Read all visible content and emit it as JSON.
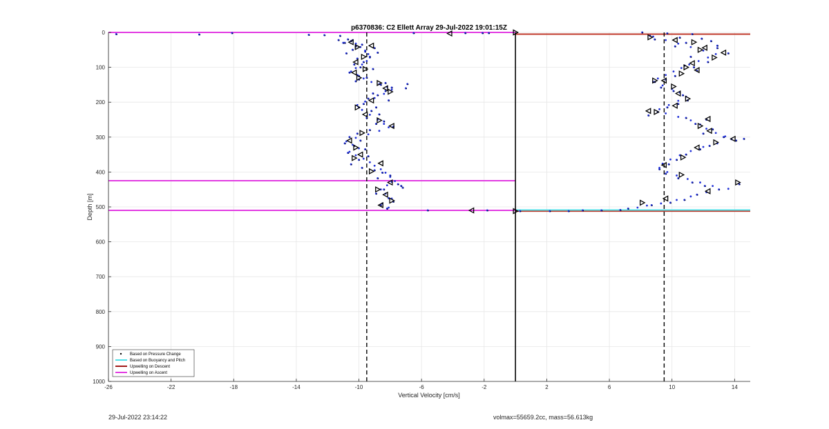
{
  "chart_data": {
    "type": "scatter",
    "title": "p6370836: C2 Ellett Array 29-Jul-2022 19:01:15Z",
    "xlabel": "Vertical Velocity [cm/s]",
    "ylabel": "Depth [m]",
    "xlim": [
      -26,
      15
    ],
    "ylim": [
      0,
      1000
    ],
    "y_reversed": true,
    "grid": true,
    "x_ticks": [
      -26,
      -22,
      -18,
      -14,
      -10,
      -6,
      -2,
      2,
      6,
      10,
      14
    ],
    "x_tick_labels": [
      "-26",
      "-22",
      "-18",
      "-14",
      "-10",
      "-6",
      "-2",
      "2",
      "6",
      "10",
      "14"
    ],
    "y_ticks": [
      0,
      100,
      200,
      300,
      400,
      500,
      600,
      700,
      800,
      900,
      1000
    ],
    "y_tick_labels": [
      "0",
      "100",
      "200",
      "300",
      "400",
      "500",
      "600",
      "700",
      "800",
      "900",
      "1000"
    ],
    "legend": {
      "position": "bottom-left",
      "entries": [
        {
          "label": "Based on Pressure Change",
          "style": "dot",
          "color": "#000000"
        },
        {
          "label": "Based on Buoyancy and Pitch",
          "style": "line",
          "color": "#4ee0e8"
        },
        {
          "label": "Upwelling on Descent",
          "style": "line",
          "color": "#a01818"
        },
        {
          "label": "Upwelling on Ascent",
          "style": "line",
          "color": "#e23ae2"
        }
      ]
    },
    "colors": {
      "dots": "#1f2fd6",
      "dots_black": "#000000",
      "markers": "#000000",
      "descent": "#c0392b",
      "ascent": "#e23ae2",
      "buoyancy": "#4ee0e8"
    },
    "reference_lines": [
      {
        "kind": "vertical",
        "x": -9.5,
        "style": "dashed"
      },
      {
        "kind": "vertical",
        "x": 9.5,
        "style": "dashed"
      },
      {
        "kind": "vertical",
        "x": 0,
        "style": "solid"
      }
    ],
    "upwelling_lines": [
      {
        "series": "Upwelling on Ascent",
        "x": [
          -26,
          0
        ],
        "y": 0
      },
      {
        "series": "Upwelling on Ascent",
        "x": [
          -26,
          0
        ],
        "y": 425
      },
      {
        "series": "Upwelling on Ascent",
        "x": [
          -26,
          0
        ],
        "y": 510
      },
      {
        "series": "Upwelling on Descent",
        "x": [
          0,
          15
        ],
        "y": 5
      },
      {
        "series": "Upwelling on Descent",
        "x": [
          0,
          15
        ],
        "y": 512
      },
      {
        "series": "Based on Buoyancy and Pitch",
        "x": [
          0,
          15
        ],
        "y": 509
      }
    ],
    "pressure_points": [
      [
        -25.5,
        5
      ],
      [
        -20.2,
        6
      ],
      [
        -18.1,
        2
      ],
      [
        -13.2,
        7
      ],
      [
        -12.2,
        8
      ],
      [
        -11.2,
        10
      ],
      [
        -6.5,
        2
      ],
      [
        -3.2,
        2
      ],
      [
        -2.1,
        2
      ],
      [
        -1.7,
        2
      ],
      [
        -10.7,
        20
      ],
      [
        -10.9,
        30
      ],
      [
        -10.5,
        25
      ],
      [
        -10.2,
        40
      ],
      [
        -9.8,
        35
      ],
      [
        -10.4,
        50
      ],
      [
        -9.6,
        55
      ],
      [
        -10.8,
        60
      ],
      [
        -9.3,
        70
      ],
      [
        -10.1,
        75
      ],
      [
        -9.7,
        85
      ],
      [
        -10.3,
        92
      ],
      [
        -9.9,
        100
      ],
      [
        -9.1,
        105
      ],
      [
        -10.6,
        115
      ],
      [
        -10.0,
        125
      ],
      [
        -9.5,
        130
      ],
      [
        -10.2,
        140
      ],
      [
        -8.6,
        150
      ],
      [
        -7.9,
        158
      ],
      [
        -8.3,
        168
      ],
      [
        -8.8,
        180
      ],
      [
        -9.4,
        190
      ],
      [
        -8.1,
        195
      ],
      [
        -9.7,
        205
      ],
      [
        -10.0,
        215
      ],
      [
        -9.2,
        225
      ],
      [
        -8.7,
        235
      ],
      [
        -9.5,
        245
      ],
      [
        -8.4,
        255
      ],
      [
        -8.9,
        262
      ],
      [
        -7.8,
        270
      ],
      [
        -9.3,
        280
      ],
      [
        -10.1,
        290
      ],
      [
        -10.6,
        300
      ],
      [
        -9.9,
        310
      ],
      [
        -10.9,
        318
      ],
      [
        -10.3,
        325
      ],
      [
        -9.6,
        335
      ],
      [
        -10.7,
        345
      ],
      [
        -9.4,
        355
      ],
      [
        -10.0,
        365
      ],
      [
        -10.5,
        378
      ],
      [
        -9.8,
        388
      ],
      [
        -9.0,
        395
      ],
      [
        -8.5,
        402
      ],
      [
        -8.0,
        410
      ],
      [
        -8.8,
        418
      ],
      [
        -7.9,
        428
      ],
      [
        -7.3,
        440
      ],
      [
        -8.4,
        450
      ],
      [
        -8.9,
        462
      ],
      [
        -8.1,
        475
      ],
      [
        -7.8,
        485
      ],
      [
        -8.6,
        495
      ],
      [
        -8.2,
        505
      ],
      [
        -5.6,
        510
      ],
      [
        -1.8,
        510
      ],
      [
        -7.2,
        445
      ],
      [
        -7.5,
        435
      ],
      [
        -6.9,
        148
      ],
      [
        -7.0,
        160
      ],
      [
        -11.0,
        30
      ],
      [
        -11.3,
        22
      ],
      [
        -9.0,
        45
      ],
      [
        -8.8,
        58
      ],
      [
        -10.0,
        135
      ],
      [
        -8.3,
        145
      ],
      [
        -9.1,
        175
      ],
      [
        -8.9,
        215
      ],
      [
        8.1,
        0
      ],
      [
        8.6,
        10
      ],
      [
        9.7,
        3
      ],
      [
        10.5,
        15
      ],
      [
        11.3,
        5
      ],
      [
        11.9,
        18
      ],
      [
        12.5,
        25
      ],
      [
        10.9,
        30
      ],
      [
        12.9,
        45
      ],
      [
        13.6,
        60
      ],
      [
        11.2,
        70
      ],
      [
        12.3,
        85
      ],
      [
        10.8,
        95
      ],
      [
        11.6,
        110
      ],
      [
        10.2,
        125
      ],
      [
        9.6,
        135
      ],
      [
        8.9,
        142
      ],
      [
        9.3,
        158
      ],
      [
        10.1,
        168
      ],
      [
        10.7,
        180
      ],
      [
        11.0,
        195
      ],
      [
        10.4,
        205
      ],
      [
        9.7,
        215
      ],
      [
        9.1,
        228
      ],
      [
        8.5,
        238
      ],
      [
        10.9,
        245
      ],
      [
        12.2,
        250
      ],
      [
        11.5,
        262
      ],
      [
        12.6,
        278
      ],
      [
        12.0,
        290
      ],
      [
        13.3,
        300
      ],
      [
        14.1,
        310
      ],
      [
        14.6,
        305
      ],
      [
        12.4,
        325
      ],
      [
        11.8,
        335
      ],
      [
        10.9,
        350
      ],
      [
        10.3,
        365
      ],
      [
        9.8,
        378
      ],
      [
        9.2,
        392
      ],
      [
        9.6,
        405
      ],
      [
        10.4,
        418
      ],
      [
        11.3,
        430
      ],
      [
        12.1,
        440
      ],
      [
        13.0,
        450
      ],
      [
        14.3,
        435
      ],
      [
        11.6,
        465
      ],
      [
        10.8,
        480
      ],
      [
        9.9,
        488
      ],
      [
        8.7,
        495
      ],
      [
        7.2,
        505
      ],
      [
        5.5,
        510
      ],
      [
        3.4,
        512
      ],
      [
        2.2,
        512
      ],
      [
        0.3,
        512
      ],
      [
        4.3,
        510
      ],
      [
        6.7,
        509
      ],
      [
        8.9,
        20
      ],
      [
        10.2,
        40
      ],
      [
        12.9,
        38
      ],
      [
        11.4,
        100
      ]
    ],
    "buoyancy_points": [
      [
        -10.4,
        22
      ],
      [
        -10.2,
        32
      ],
      [
        -9.9,
        42
      ],
      [
        -9.6,
        52
      ],
      [
        -9.4,
        62
      ],
      [
        -9.3,
        72
      ],
      [
        -9.5,
        82
      ],
      [
        -9.8,
        92
      ],
      [
        -10.2,
        102
      ],
      [
        -10.5,
        112
      ],
      [
        -10.1,
        122
      ],
      [
        -9.7,
        132
      ],
      [
        -9.2,
        142
      ],
      [
        -8.7,
        148
      ],
      [
        -8.2,
        156
      ],
      [
        -7.9,
        164
      ],
      [
        -8.4,
        176
      ],
      [
        -9.0,
        188
      ],
      [
        -9.6,
        198
      ],
      [
        -10.1,
        208
      ],
      [
        -9.8,
        222
      ],
      [
        -9.3,
        236
      ],
      [
        -8.8,
        250
      ],
      [
        -8.4,
        262
      ],
      [
        -8.1,
        272
      ],
      [
        -8.7,
        282
      ],
      [
        -9.4,
        292
      ],
      [
        -10.2,
        302
      ],
      [
        -10.8,
        312
      ],
      [
        -10.4,
        322
      ],
      [
        -10.0,
        332
      ],
      [
        -10.6,
        342
      ],
      [
        -10.2,
        352
      ],
      [
        -9.7,
        362
      ],
      [
        -9.3,
        372
      ],
      [
        -9.0,
        382
      ],
      [
        -8.6,
        392
      ],
      [
        -8.3,
        402
      ],
      [
        -8.0,
        414
      ],
      [
        -7.7,
        426
      ],
      [
        -8.2,
        438
      ],
      [
        -8.6,
        450
      ],
      [
        -8.3,
        462
      ],
      [
        -7.9,
        476
      ],
      [
        -8.5,
        490
      ],
      [
        -8.1,
        502
      ],
      [
        8.8,
        12
      ],
      [
        9.6,
        22
      ],
      [
        10.4,
        32
      ],
      [
        11.2,
        42
      ],
      [
        12.0,
        52
      ],
      [
        12.8,
        62
      ],
      [
        12.3,
        72
      ],
      [
        11.7,
        82
      ],
      [
        11.1,
        92
      ],
      [
        10.6,
        102
      ],
      [
        10.1,
        112
      ],
      [
        9.6,
        122
      ],
      [
        9.1,
        132
      ],
      [
        8.8,
        142
      ],
      [
        9.4,
        152
      ],
      [
        10.0,
        162
      ],
      [
        10.5,
        172
      ],
      [
        10.9,
        184
      ],
      [
        10.4,
        196
      ],
      [
        9.8,
        208
      ],
      [
        9.2,
        220
      ],
      [
        9.6,
        232
      ],
      [
        10.4,
        242
      ],
      [
        11.2,
        252
      ],
      [
        11.8,
        264
      ],
      [
        12.2,
        276
      ],
      [
        12.8,
        288
      ],
      [
        13.4,
        298
      ],
      [
        13.8,
        306
      ],
      [
        12.9,
        318
      ],
      [
        12.0,
        328
      ],
      [
        11.2,
        340
      ],
      [
        10.5,
        352
      ],
      [
        9.9,
        364
      ],
      [
        9.4,
        376
      ],
      [
        9.2,
        388
      ],
      [
        9.7,
        400
      ],
      [
        10.3,
        410
      ],
      [
        11.0,
        420
      ],
      [
        11.8,
        430
      ],
      [
        12.6,
        440
      ],
      [
        13.6,
        448
      ],
      [
        12.2,
        458
      ],
      [
        11.2,
        470
      ],
      [
        10.3,
        480
      ],
      [
        9.3,
        490
      ],
      [
        8.4,
        496
      ],
      [
        7.8,
        502
      ]
    ],
    "markers": [
      [
        -4.2,
        3,
        "left"
      ],
      [
        0.0,
        0,
        "right"
      ],
      [
        -10.5,
        28,
        "left"
      ],
      [
        -10.1,
        42,
        "right"
      ],
      [
        -9.2,
        38,
        "left"
      ],
      [
        -9.7,
        70,
        "right"
      ],
      [
        -10.2,
        85,
        "left"
      ],
      [
        -9.6,
        105,
        "right"
      ],
      [
        -10.3,
        115,
        "left"
      ],
      [
        -10.0,
        130,
        "right"
      ],
      [
        -8.7,
        145,
        "right"
      ],
      [
        -8.3,
        160,
        "left"
      ],
      [
        -8.0,
        170,
        "right"
      ],
      [
        -9.2,
        195,
        "left"
      ],
      [
        -10.1,
        215,
        "right"
      ],
      [
        -9.6,
        235,
        "left"
      ],
      [
        -8.7,
        252,
        "right"
      ],
      [
        -7.9,
        268,
        "left"
      ],
      [
        -9.8,
        288,
        "right"
      ],
      [
        -10.6,
        310,
        "left"
      ],
      [
        -10.2,
        330,
        "right"
      ],
      [
        -9.9,
        350,
        "left"
      ],
      [
        -10.3,
        360,
        "right"
      ],
      [
        -8.6,
        375,
        "left"
      ],
      [
        -9.2,
        398,
        "right"
      ],
      [
        -8.0,
        430,
        "left"
      ],
      [
        -8.8,
        450,
        "right"
      ],
      [
        -8.3,
        465,
        "left"
      ],
      [
        -7.9,
        482,
        "right"
      ],
      [
        -8.6,
        495,
        "left"
      ],
      [
        -2.8,
        510,
        "left"
      ],
      [
        0.0,
        512,
        "right"
      ],
      [
        8.6,
        14,
        "right"
      ],
      [
        10.2,
        22,
        "left"
      ],
      [
        11.4,
        28,
        "right"
      ],
      [
        12.1,
        44,
        "left"
      ],
      [
        11.8,
        50,
        "right"
      ],
      [
        13.3,
        58,
        "left"
      ],
      [
        12.7,
        72,
        "right"
      ],
      [
        11.3,
        88,
        "left"
      ],
      [
        10.9,
        100,
        "right"
      ],
      [
        11.6,
        108,
        "left"
      ],
      [
        10.6,
        118,
        "right"
      ],
      [
        9.5,
        138,
        "left"
      ],
      [
        10.1,
        155,
        "right"
      ],
      [
        10.4,
        175,
        "left"
      ],
      [
        11.0,
        190,
        "right"
      ],
      [
        10.2,
        210,
        "left"
      ],
      [
        9.0,
        228,
        "right"
      ],
      [
        12.3,
        248,
        "left"
      ],
      [
        11.8,
        268,
        "right"
      ],
      [
        12.4,
        282,
        "left"
      ],
      [
        13.9,
        305,
        "left"
      ],
      [
        12.8,
        315,
        "right"
      ],
      [
        11.6,
        330,
        "left"
      ],
      [
        10.7,
        358,
        "right"
      ],
      [
        9.5,
        380,
        "left"
      ],
      [
        10.6,
        408,
        "right"
      ],
      [
        12.3,
        455,
        "left"
      ],
      [
        14.2,
        430,
        "right"
      ],
      [
        9.6,
        476,
        "left"
      ],
      [
        8.1,
        488,
        "right"
      ],
      [
        8.9,
        138,
        "right"
      ],
      [
        8.5,
        225,
        "left"
      ]
    ]
  },
  "footer": {
    "timestamp": "29-Jul-2022 23:14:22",
    "vehicle_info": "volmax=55659.2cc, mass=56.613kg"
  }
}
